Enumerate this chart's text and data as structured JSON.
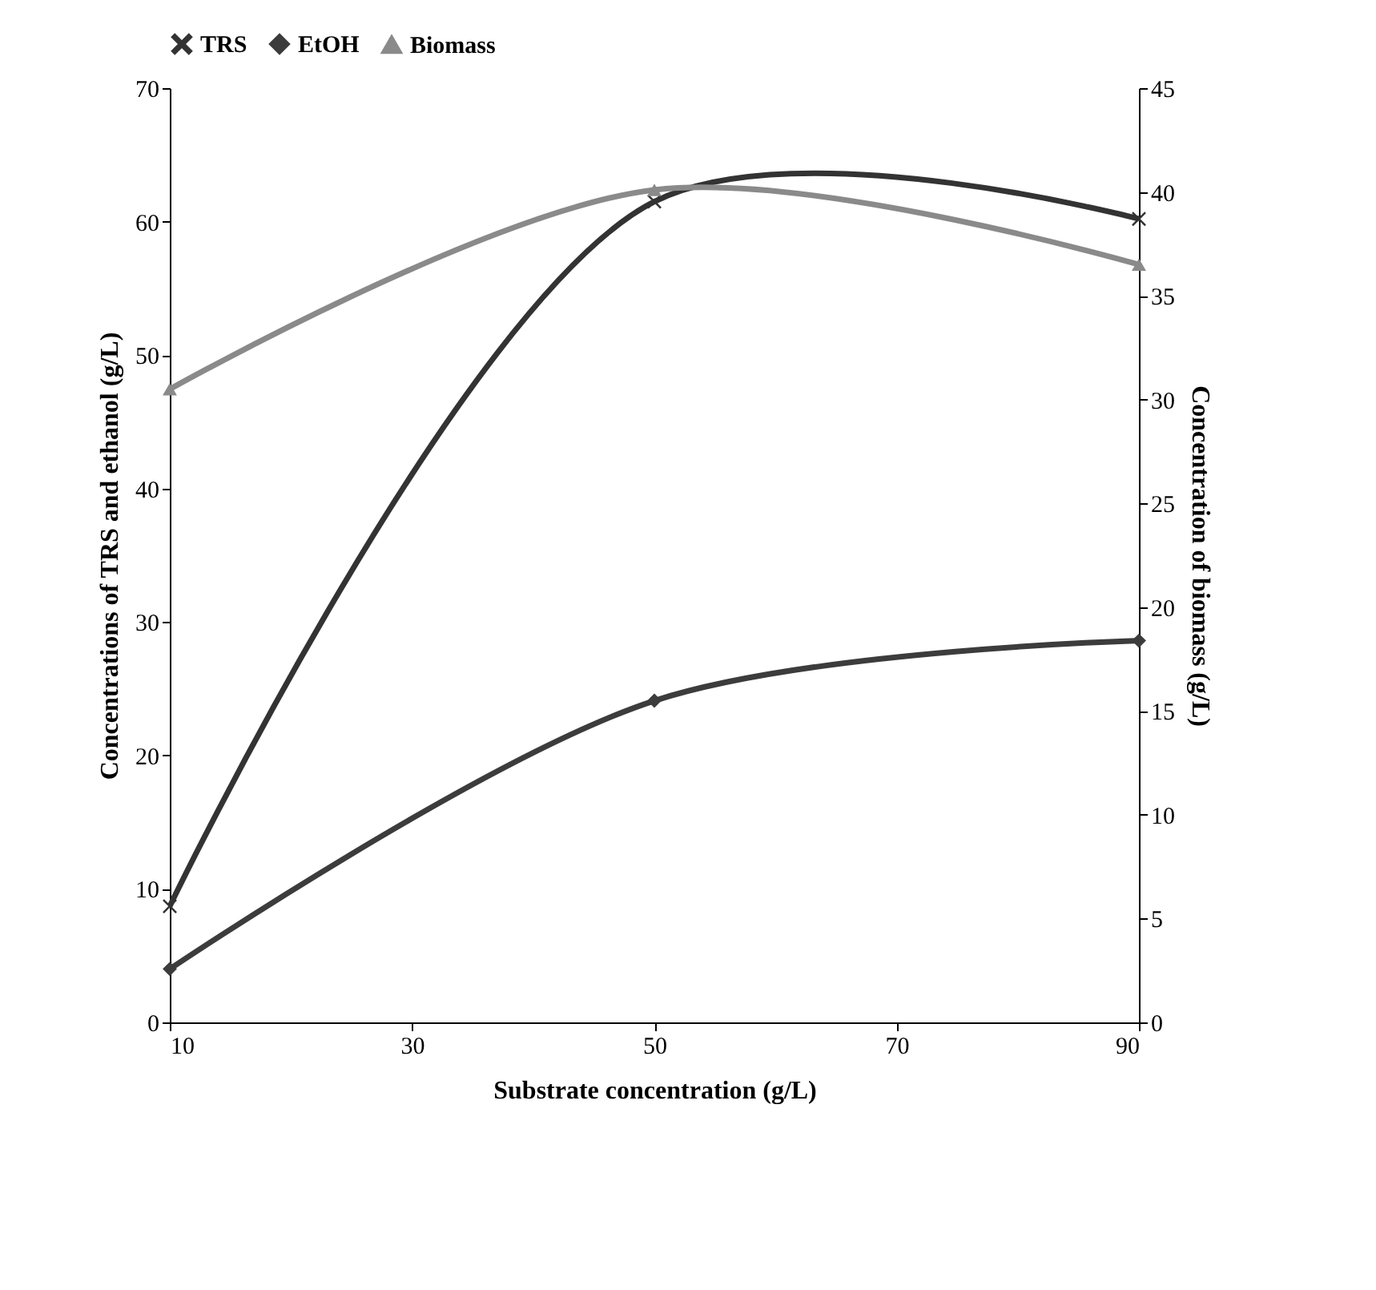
{
  "chart_data": {
    "type": "line",
    "xlabel": "Substrate concentration (g/L)",
    "ylabel": "Concentrations of TRS and ethanol (g/L)",
    "y2label": "Concentration of biomass (g/L)",
    "x": [
      10,
      50,
      90
    ],
    "xlim": [
      10,
      90
    ],
    "xticks": [
      10,
      30,
      50,
      70,
      90
    ],
    "ylim": [
      0,
      70
    ],
    "yticks": [
      0,
      10,
      20,
      30,
      40,
      50,
      60,
      70
    ],
    "y2lim": [
      0,
      45
    ],
    "y2ticks": [
      0,
      5,
      10,
      15,
      20,
      25,
      30,
      35,
      40,
      45
    ],
    "legend": "top",
    "grid": false,
    "series": [
      {
        "name": "TRS",
        "color": "#333333",
        "marker": "cross",
        "values": [
          8.7,
          61.5,
          60.2
        ]
      },
      {
        "name": "EtOH",
        "color": "#3c3c3c",
        "marker": "diamond",
        "values": [
          4.0,
          24.1,
          28.6
        ]
      },
      {
        "name": "Biomass",
        "color": "#8a8a8a",
        "marker": "triangle",
        "axis": "y2",
        "values": [
          30.5,
          40.1,
          36.5
        ]
      }
    ]
  }
}
